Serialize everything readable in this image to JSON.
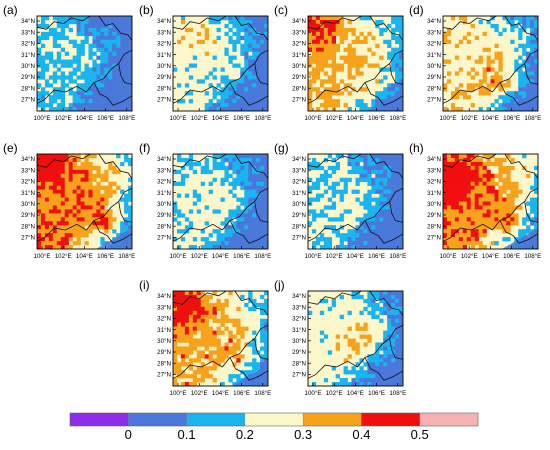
{
  "panels": [
    {
      "label": "(a)",
      "intensity": 0.12,
      "hot_x": 0.25,
      "hot_y": 0.25,
      "dot": 0.0
    },
    {
      "label": "(b)",
      "intensity": 0.28,
      "hot_x": 0.25,
      "hot_y": 0.2,
      "dot": 0.0
    },
    {
      "label": "(c)",
      "intensity": 0.55,
      "hot_x": 0.1,
      "hot_y": 0.15,
      "dot": 0.25
    },
    {
      "label": "(d)",
      "intensity": 0.42,
      "hot_x": 0.5,
      "hot_y": 0.7,
      "dot": 0.35
    },
    {
      "label": "(e)",
      "intensity": 0.75,
      "hot_x": 0.05,
      "hot_y": 0.05,
      "dot": 0.6
    },
    {
      "label": "(f)",
      "intensity": 0.22,
      "hot_x": 0.4,
      "hot_y": 0.6,
      "dot": 0.0
    },
    {
      "label": "(g)",
      "intensity": 0.18,
      "hot_x": 0.4,
      "hot_y": 0.6,
      "dot": 0.0
    },
    {
      "label": "(h)",
      "intensity": 0.72,
      "hot_x": 0.1,
      "hot_y": 0.25,
      "dot": 0.5
    },
    {
      "label": "(i)",
      "intensity": 0.62,
      "hot_x": 0.1,
      "hot_y": 0.15,
      "dot": 0.4
    },
    {
      "label": "(j)",
      "intensity": 0.33,
      "hot_x": 0.55,
      "hot_y": 0.55,
      "dot": 0.0
    }
  ],
  "lat_labels": [
    "34°N",
    "33°N",
    "32°N",
    "31°N",
    "30°N",
    "29°N",
    "28°N",
    "27°N"
  ],
  "lon_labels": [
    "100°E",
    "102°E",
    "104°E",
    "106°E",
    "108°E"
  ],
  "legend": {
    "colors": [
      "#8f2bea",
      "#4a78da",
      "#18b5f0",
      "#fcf6cb",
      "#f7a21b",
      "#f10e0e",
      "#f7b3b3"
    ],
    "tick_labels": [
      "0",
      "0.1",
      "0.2",
      "0.3",
      "0.4",
      "0.5"
    ]
  }
}
